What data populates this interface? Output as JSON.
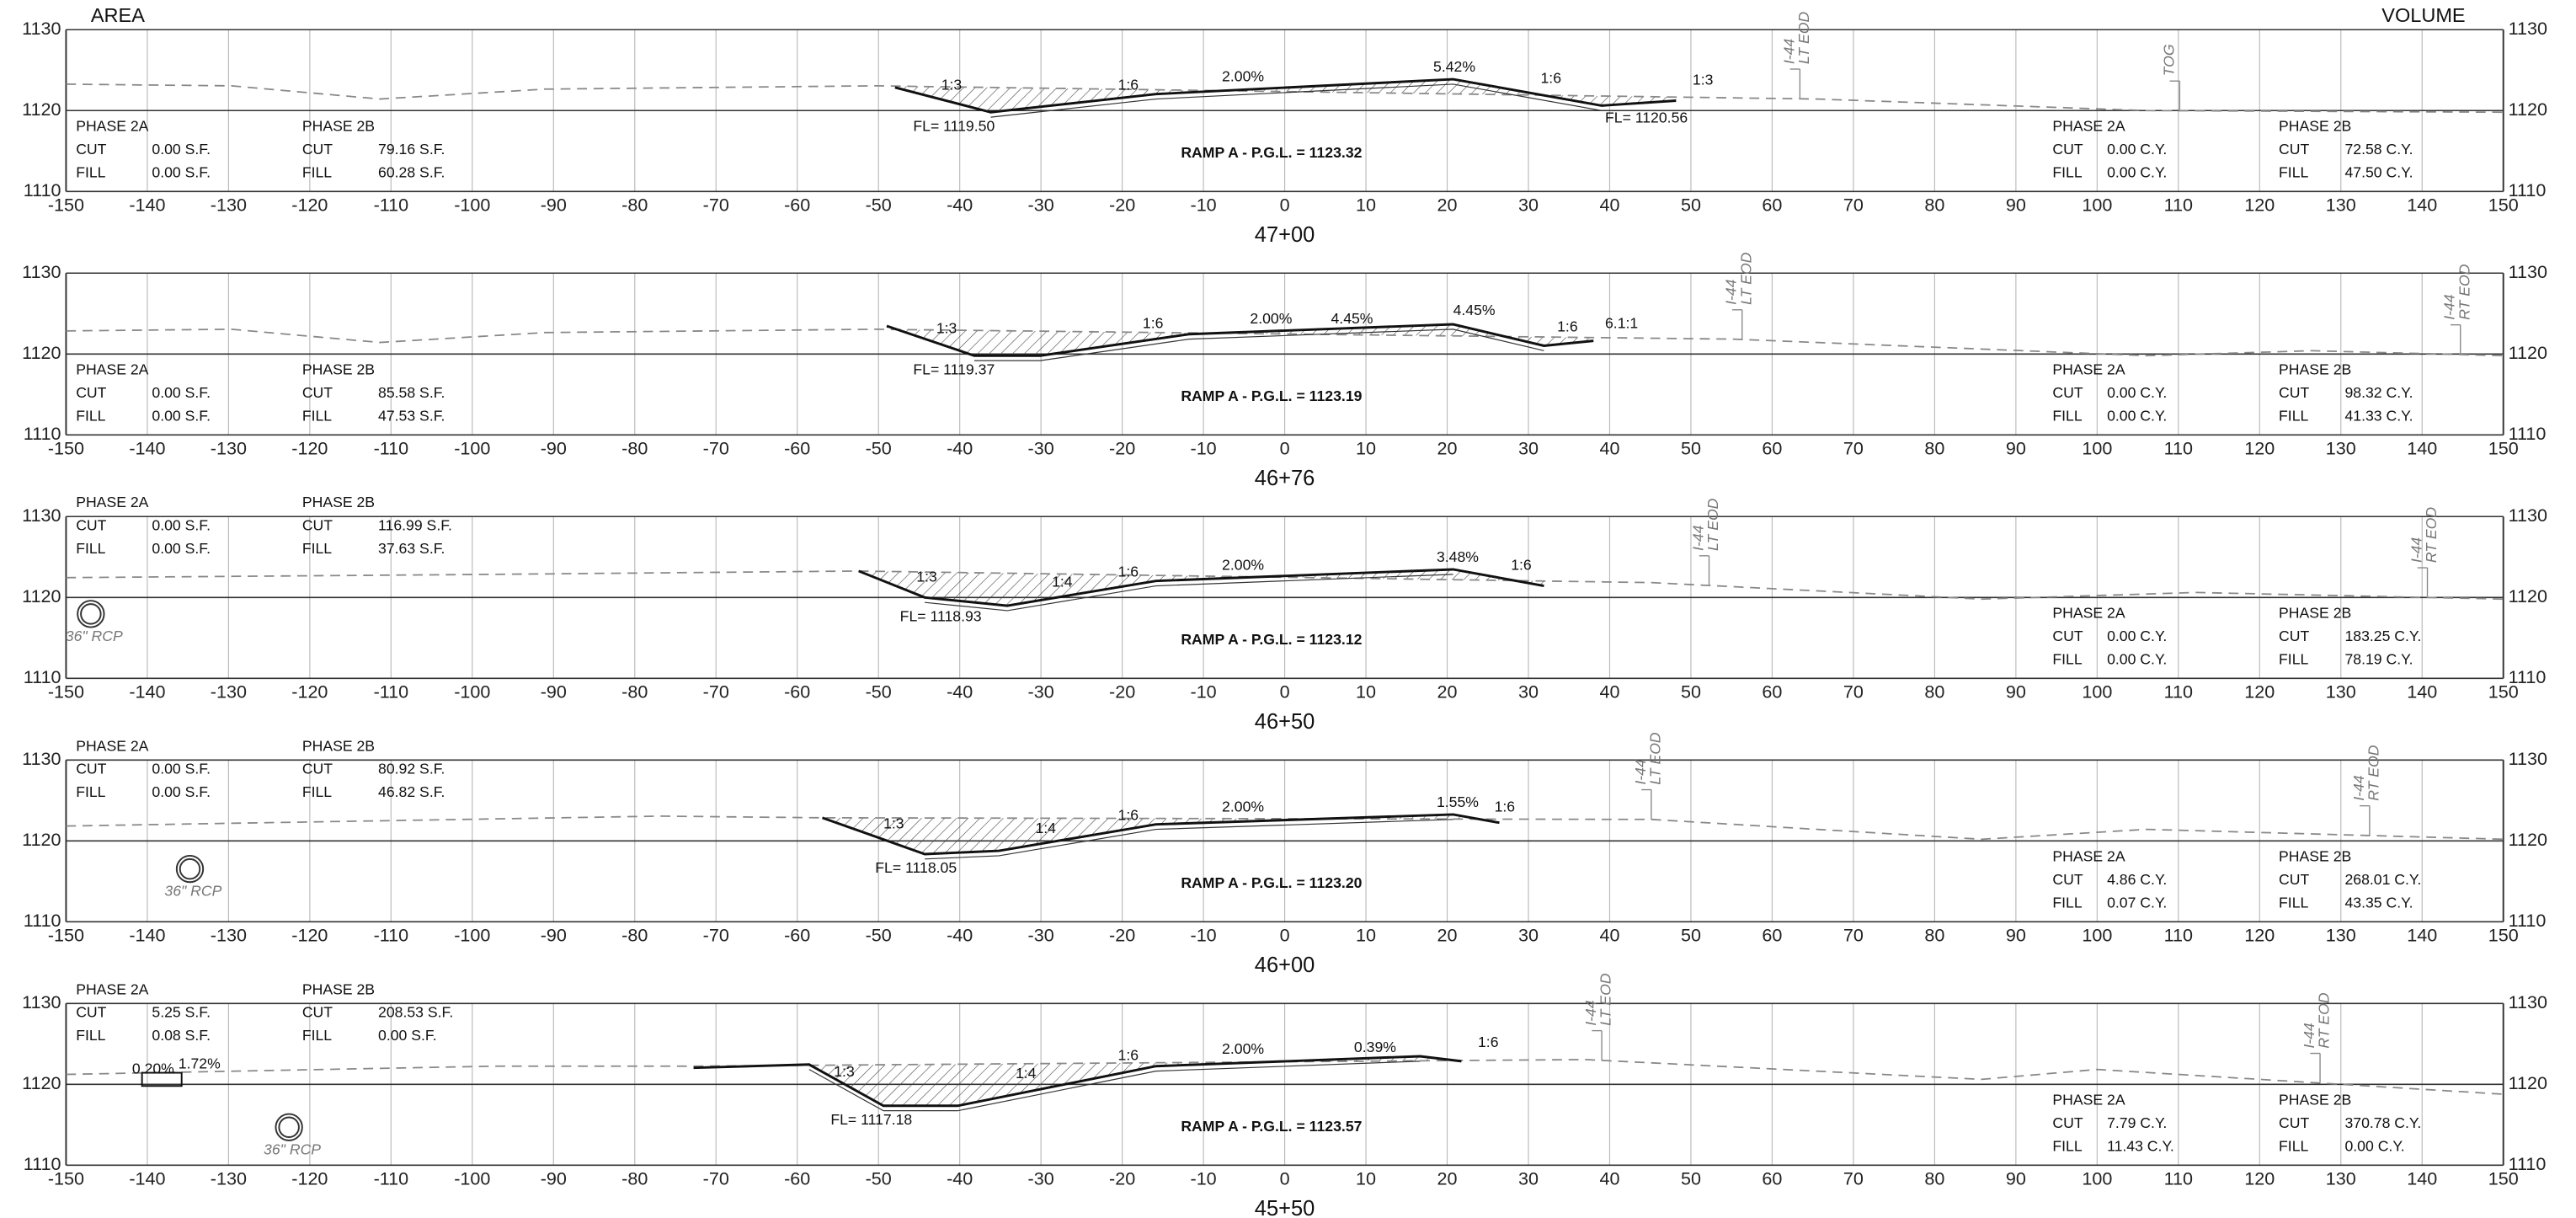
{
  "header": {
    "left": "AREA",
    "right": "VOLUME"
  },
  "offset_ticks": [
    -150,
    -140,
    -130,
    -120,
    -110,
    -100,
    -90,
    -80,
    -70,
    -60,
    -50,
    -40,
    -30,
    -20,
    -10,
    0,
    10,
    20,
    30,
    40,
    50,
    60,
    70,
    80,
    90,
    100,
    110,
    120,
    130,
    140,
    150
  ],
  "elevation_ticks": [
    1110,
    1120,
    1130
  ],
  "phase_2a": "PHASE 2A",
  "phase_2b": "PHASE 2B",
  "cut": "CUT",
  "fill": "FILL",
  "sections": [
    {
      "station": "47+00",
      "pgl": "RAMP A - P.G.L. = 1123.32",
      "flowlines": [
        "FL= 1119.50",
        "FL= 1120.56"
      ],
      "slopes": [
        "1:3",
        "1:6",
        "2.00%",
        "5.42%",
        "1:6",
        "1:3"
      ],
      "area": {
        "2a": {
          "cut": "0.00 S.F.",
          "fill": "0.00 S.F."
        },
        "2b": {
          "cut": "79.16 S.F.",
          "fill": "60.28 S.F."
        }
      },
      "volume": {
        "2a": {
          "cut": "0.00 C.Y.",
          "fill": "0.00 C.Y."
        },
        "2b": {
          "cut": "72.58 C.Y.",
          "fill": "47.50 C.Y."
        }
      },
      "callouts": [
        [
          "I-44",
          "LT EOD"
        ],
        [
          "TOG"
        ]
      ]
    },
    {
      "station": "46+76",
      "pgl": "RAMP A - P.G.L. = 1123.19",
      "flowlines": [
        "FL= 1119.37"
      ],
      "slopes": [
        "1:3",
        "1:6",
        "2.00%",
        "4.45%",
        "4.45%",
        "1:6",
        "6.1:1"
      ],
      "area": {
        "2a": {
          "cut": "0.00 S.F.",
          "fill": "0.00 S.F."
        },
        "2b": {
          "cut": "85.58 S.F.",
          "fill": "47.53 S.F."
        }
      },
      "volume": {
        "2a": {
          "cut": "0.00 C.Y.",
          "fill": "0.00 C.Y."
        },
        "2b": {
          "cut": "98.32 C.Y.",
          "fill": "41.33 C.Y."
        }
      },
      "callouts": [
        [
          "I-44",
          "LT EOD"
        ],
        [
          "I-44",
          "RT EOD"
        ]
      ]
    },
    {
      "station": "46+50",
      "pgl": "RAMP A - P.G.L. = 1123.12",
      "flowlines": [
        "FL= 1118.93"
      ],
      "slopes": [
        "1:3",
        "1:4",
        "1:6",
        "2.00%",
        "3.48%",
        "1:6"
      ],
      "area": {
        "2a": {
          "cut": "0.00 S.F.",
          "fill": "0.00 S.F."
        },
        "2b": {
          "cut": "116.99 S.F.",
          "fill": "37.63 S.F."
        }
      },
      "volume": {
        "2a": {
          "cut": "0.00 C.Y.",
          "fill": "0.00 C.Y."
        },
        "2b": {
          "cut": "183.25 C.Y.",
          "fill": "78.19 C.Y."
        }
      },
      "pipe": "36\" RCP",
      "callouts": [
        [
          "I-44",
          "LT EOD"
        ],
        [
          "I-44",
          "RT EOD"
        ]
      ]
    },
    {
      "station": "46+00",
      "pgl": "RAMP A - P.G.L. = 1123.20",
      "flowlines": [
        "FL= 1118.05"
      ],
      "slopes": [
        "1:3",
        "1:4",
        "1:6",
        "2.00%",
        "1.55%",
        "1:6"
      ],
      "area": {
        "2a": {
          "cut": "0.00 S.F.",
          "fill": "0.00 S.F."
        },
        "2b": {
          "cut": "80.92 S.F.",
          "fill": "46.82 S.F."
        }
      },
      "volume": {
        "2a": {
          "cut": "4.86 C.Y.",
          "fill": "0.07 C.Y."
        },
        "2b": {
          "cut": "268.01 C.Y.",
          "fill": "43.35 C.Y."
        }
      },
      "pipe": "36\" RCP",
      "callouts": [
        [
          "I-44",
          "LT EOD"
        ],
        [
          "I-44",
          "RT EOD"
        ]
      ]
    },
    {
      "station": "45+50",
      "pgl": "RAMP A - P.G.L. = 1123.57",
      "flowlines": [
        "FL= 1117.18"
      ],
      "slopes": [
        "1:3",
        "1:4",
        "1:6",
        "2.00%",
        "0.39%",
        "1:6",
        "0.20%",
        "1.72%"
      ],
      "area": {
        "2a": {
          "cut": "5.25 S.F.",
          "fill": "0.08 S.F."
        },
        "2b": {
          "cut": "208.53 S.F.",
          "fill": "0.00 S.F."
        }
      },
      "volume": {
        "2a": {
          "cut": "7.79 C.Y.",
          "fill": "11.43 C.Y."
        },
        "2b": {
          "cut": "370.78 C.Y.",
          "fill": "0.00 C.Y."
        }
      },
      "pipe": "36\" RCP",
      "callouts": [
        [
          "I-44",
          "LT EOD"
        ],
        [
          "I-44",
          "RT EOD"
        ]
      ]
    }
  ]
}
